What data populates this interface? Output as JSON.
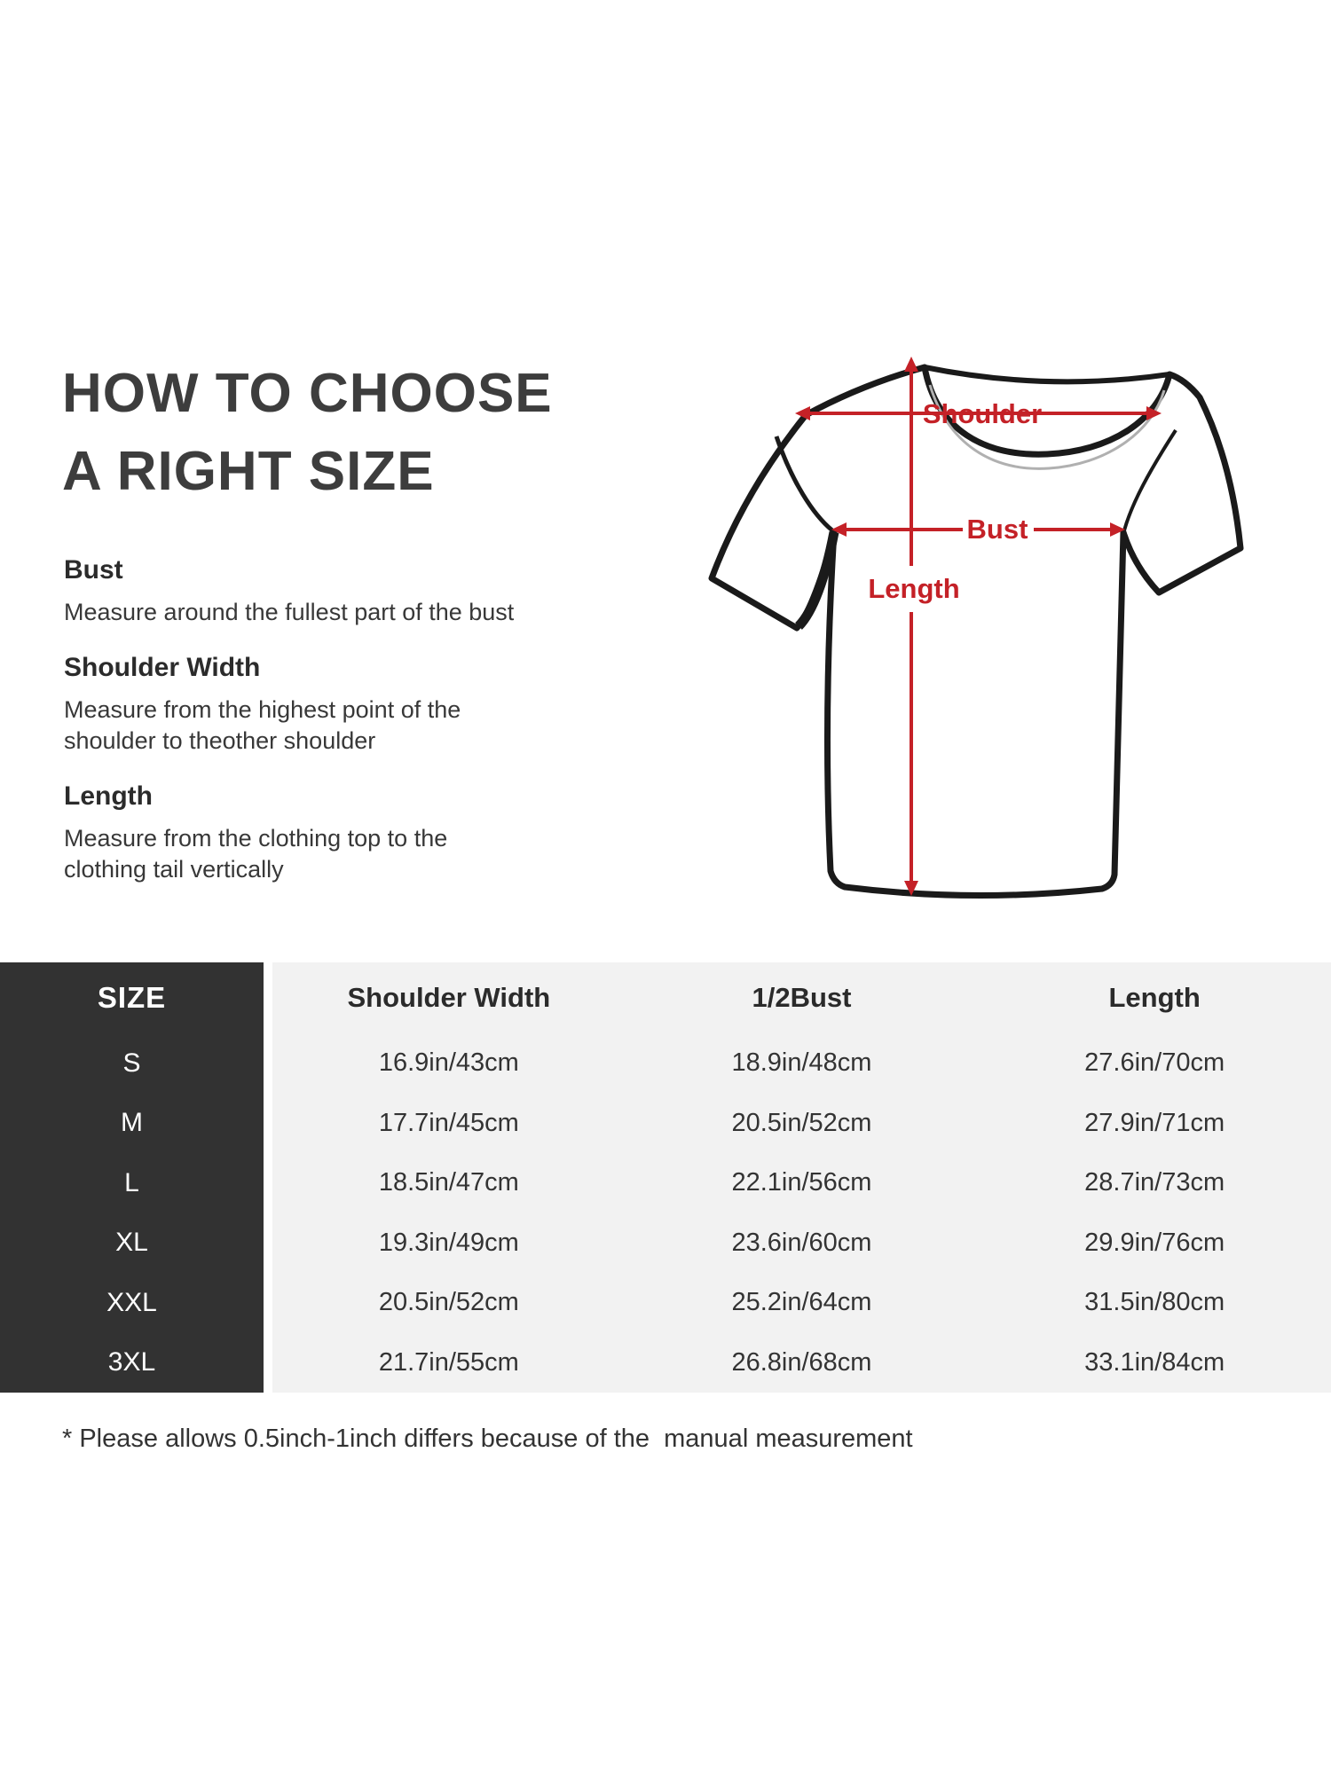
{
  "title": {
    "line1": "HOW TO CHOOSE",
    "line2": "A RIGHT SIZE"
  },
  "instructions": [
    {
      "heading": "Bust",
      "lines": [
        "Measure around the fullest part of the bust"
      ]
    },
    {
      "heading": "Shoulder Width",
      "lines": [
        "Measure from the highest point of the",
        "shoulder to theother shoulder"
      ]
    },
    {
      "heading": "Length",
      "lines": [
        "Measure from the clothing top to the",
        "clothing tail vertically"
      ]
    }
  ],
  "diagram": {
    "labels": {
      "shoulder": "Shoulder",
      "bust": "Bust",
      "length": "Length"
    }
  },
  "size_table": {
    "headers": [
      "SIZE",
      "Shoulder Width",
      "1/2Bust",
      "Length"
    ],
    "rows": [
      {
        "size": "S",
        "shoulder_width": "16.9in/43cm",
        "half_bust": "18.9in/48cm",
        "length": "27.6in/70cm"
      },
      {
        "size": "M",
        "shoulder_width": "17.7in/45cm",
        "half_bust": "20.5in/52cm",
        "length": "27.9in/71cm"
      },
      {
        "size": "L",
        "shoulder_width": "18.5in/47cm",
        "half_bust": "22.1in/56cm",
        "length": "28.7in/73cm"
      },
      {
        "size": "XL",
        "shoulder_width": "19.3in/49cm",
        "half_bust": "23.6in/60cm",
        "length": "29.9in/76cm"
      },
      {
        "size": "XXL",
        "shoulder_width": "20.5in/52cm",
        "half_bust": "25.2in/64cm",
        "length": "31.5in/80cm"
      },
      {
        "size": "3XL",
        "shoulder_width": "21.7in/55cm",
        "half_bust": "26.8in/68cm",
        "length": "33.1in/84cm"
      }
    ]
  },
  "footnote": "* Please allows 0.5inch-1inch differs because of the  manual measurement",
  "colors": {
    "accent": "#c42127",
    "table_dark_bg": "#323232",
    "table_light_bg": "#f2f2f2",
    "title_text": "#3d3d3d",
    "body_text": "#333333"
  }
}
